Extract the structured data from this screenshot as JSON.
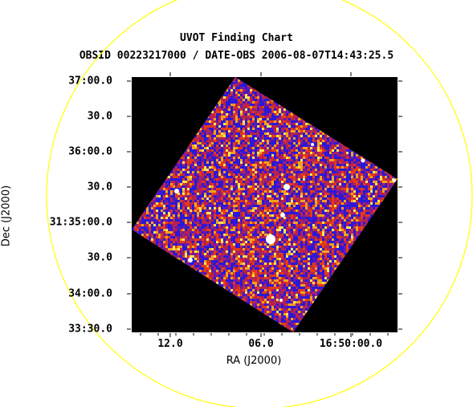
{
  "chart": {
    "title": "UVOT Finding Chart",
    "subtitle": "OBSID 00223217000 / DATE-OBS 2006-08-07T14:43:25.5",
    "xlabel": "RA (J2000)",
    "ylabel": "Dec (J2000)",
    "ra_ticks": [
      "12.0",
      "06.0",
      "16:50:00.0"
    ],
    "dec_ticks": [
      "37:00.0",
      "30.0",
      "36:00.0",
      "30.0",
      "31:35:00.0",
      "30.0",
      "34:00.0",
      "33:30.0"
    ],
    "circle_color": "#ffff00",
    "background_color": "#000000",
    "colormap": [
      "#2b18d8",
      "#6e1aa6",
      "#b5234f",
      "#e63a16",
      "#f5a21b",
      "#fde457"
    ]
  }
}
